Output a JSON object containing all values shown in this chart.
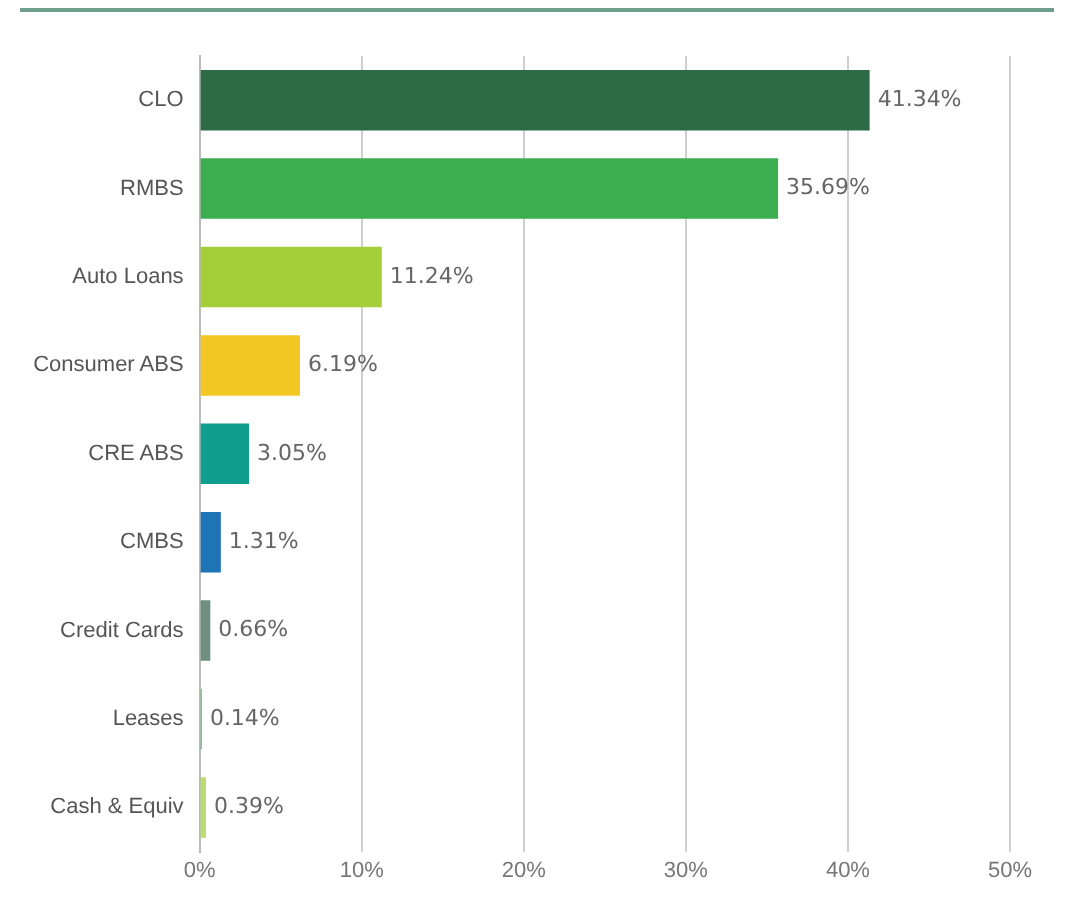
{
  "chart_data": {
    "type": "bar",
    "orientation": "horizontal",
    "categories": [
      "CLO",
      "RMBS",
      "Auto Loans",
      "Consumer ABS",
      "CRE ABS",
      "CMBS",
      "Credit Cards",
      "Leases",
      "Cash & Equiv"
    ],
    "values": [
      41.34,
      35.69,
      11.24,
      6.19,
      3.05,
      1.31,
      0.66,
      0.14,
      0.39
    ],
    "colors": [
      "#2d6a46",
      "#3dae4f",
      "#a5cf38",
      "#f2c623",
      "#109e8e",
      "#1f74b5",
      "#6f8f80",
      "#6cc56c",
      "#b8dd6c"
    ],
    "value_labels": [
      "41.34%",
      "35.69%",
      "11.24%",
      "6.19%",
      "3.05%",
      "1.31%",
      "0.66%",
      "0.14%",
      "0.39%"
    ],
    "xlim": [
      0,
      50
    ],
    "xticks": [
      {
        "value": 0,
        "label": "0%"
      },
      {
        "value": 10,
        "label": "10%"
      },
      {
        "value": 20,
        "label": "20%"
      },
      {
        "value": 30,
        "label": "30%"
      },
      {
        "value": 40,
        "label": "40%"
      },
      {
        "value": 50,
        "label": "50%"
      }
    ],
    "grid": "x"
  }
}
